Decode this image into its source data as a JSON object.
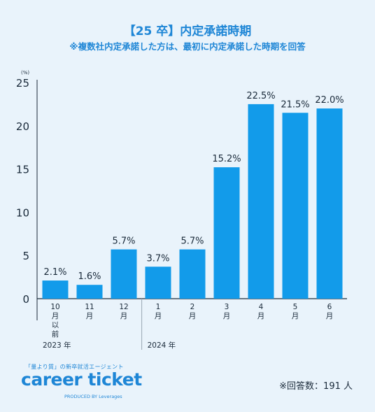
{
  "header": {
    "title": "【25 卒】内定承諾時期",
    "subtitle": "※複数社内定承諾した方は、最初に内定承諾した時期を回答"
  },
  "chart_data": {
    "type": "bar",
    "ylabel": "(%)",
    "ylim": [
      0,
      25
    ],
    "yticks": [
      0,
      5,
      10,
      15,
      20,
      25
    ],
    "categories": [
      [
        "10",
        "月",
        "以",
        "前"
      ],
      [
        "11",
        "月"
      ],
      [
        "12",
        "月"
      ],
      [
        "1",
        "月"
      ],
      [
        "2",
        "月"
      ],
      [
        "3",
        "月"
      ],
      [
        "4",
        "月"
      ],
      [
        "5",
        "月"
      ],
      [
        "6",
        "月"
      ]
    ],
    "values": [
      2.1,
      1.6,
      5.7,
      3.7,
      5.7,
      15.2,
      22.5,
      21.5,
      22.0
    ],
    "value_labels": [
      "2.1%",
      "1.6%",
      "5.7%",
      "3.7%",
      "5.7%",
      "15.2%",
      "22.5%",
      "21.5%",
      "22.0%"
    ],
    "year_groups": [
      {
        "label": "2023 年",
        "start": 0,
        "end": 2
      },
      {
        "label": "2024 年",
        "start": 3,
        "end": 8
      }
    ],
    "bar_color": "#129bea",
    "grid": false
  },
  "brand": {
    "tagline": "「量より質」の新卒就活エージェント",
    "logo": "career ticket",
    "produced_by": "PRODUCED BY Leverages"
  },
  "footer": {
    "respondents": "※回答数：191 人"
  }
}
